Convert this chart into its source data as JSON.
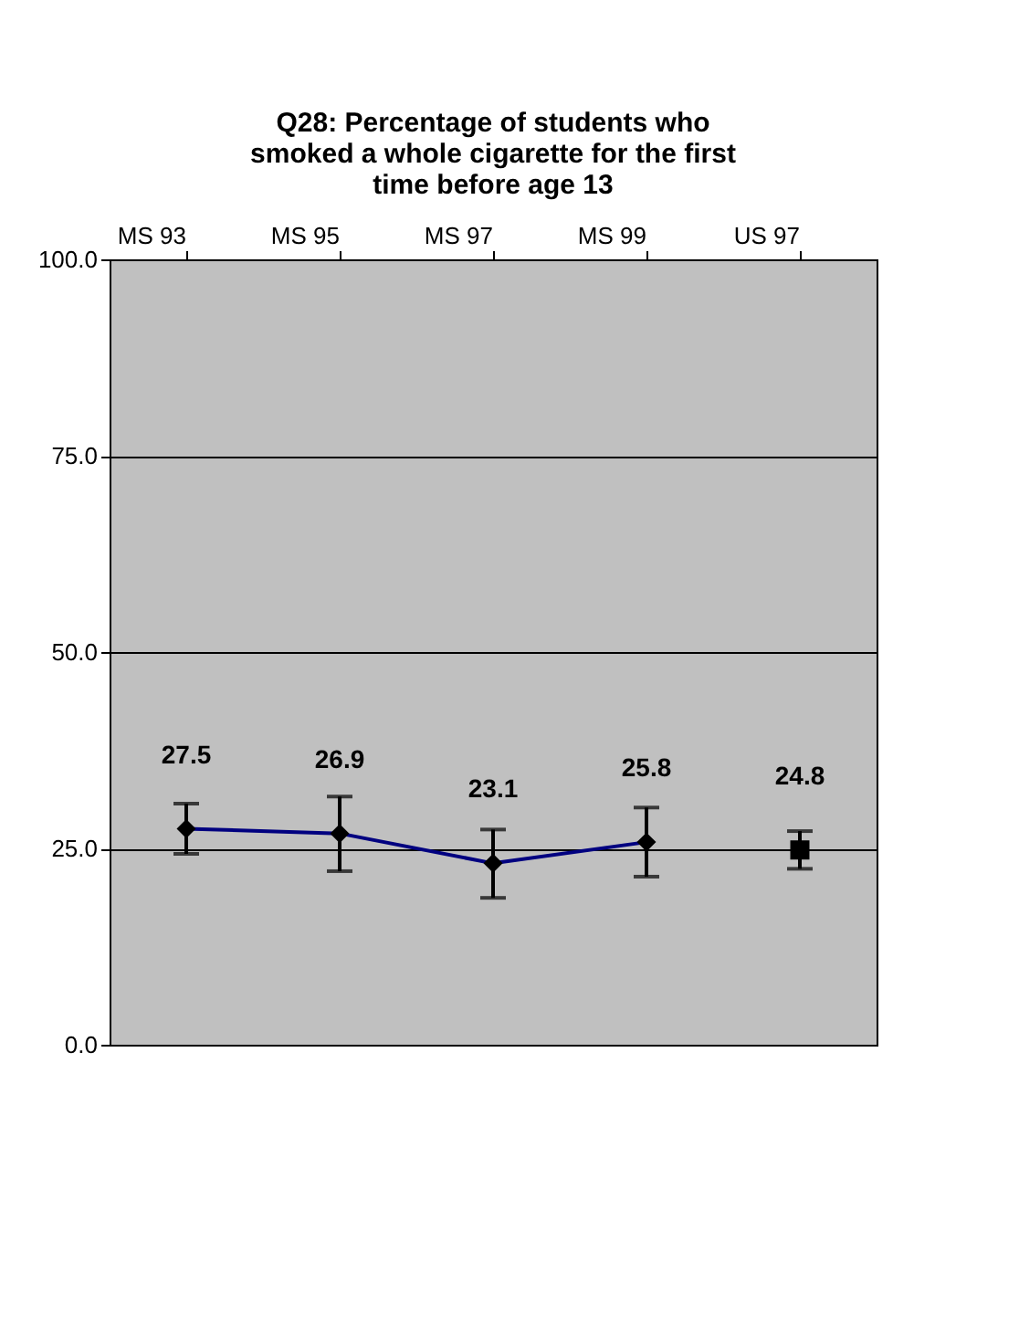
{
  "chart_data": {
    "type": "line",
    "title": [
      "Q28: Percentage of students who",
      "smoked a whole cigarette for the first",
      "time before age 13"
    ],
    "categories": [
      "MS 93",
      "MS 95",
      "MS 97",
      "MS 99",
      "US 97"
    ],
    "series": [
      {
        "color": "#000080",
        "marker": "diamond",
        "values": [
          27.5,
          26.9,
          23.1,
          25.8,
          null
        ],
        "errors": [
          [
            24.3,
            30.7
          ],
          [
            22.1,
            31.6
          ],
          [
            18.7,
            27.4
          ],
          [
            21.4,
            30.2
          ],
          null
        ]
      },
      {
        "type": "scatter",
        "color": "#000000",
        "marker": "square",
        "values": [
          null,
          null,
          null,
          null,
          24.8
        ],
        "errors": [
          null,
          null,
          null,
          null,
          [
            22.4,
            27.2
          ]
        ]
      }
    ],
    "ylim": [
      0,
      100
    ],
    "yticks": [
      {
        "value": 0,
        "label": "0.0"
      },
      {
        "value": 25,
        "label": "25.0"
      },
      {
        "value": 50,
        "label": "50.0"
      },
      {
        "value": 75,
        "label": "75.0"
      },
      {
        "value": 100,
        "label": "100.0"
      }
    ],
    "grid": "y",
    "data_labels": true
  }
}
